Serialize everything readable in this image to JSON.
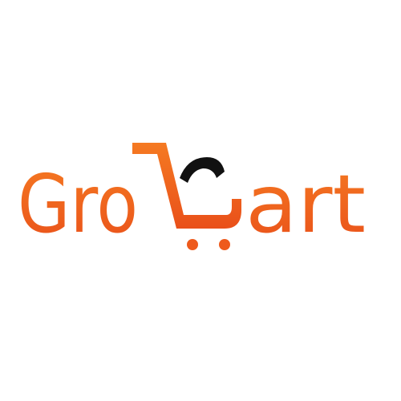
{
  "logo": {
    "text_left": "Gro",
    "text_right": "art"
  }
}
